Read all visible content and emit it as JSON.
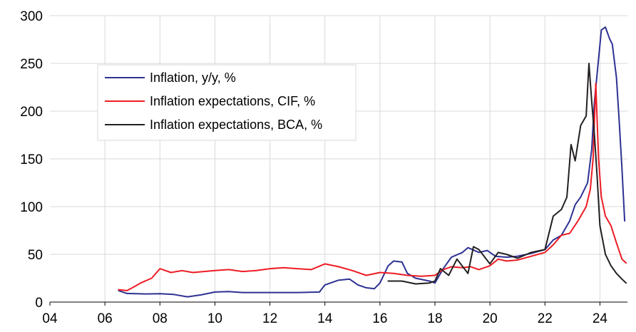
{
  "chart_data": {
    "type": "line",
    "title": "",
    "xlabel": "",
    "ylabel": "",
    "xlim": [
      2004,
      2025
    ],
    "ylim": [
      0,
      300
    ],
    "grid": true,
    "legend_position": "top-left",
    "x_ticks": [
      {
        "value": 2004,
        "label": "04"
      },
      {
        "value": 2006,
        "label": "06"
      },
      {
        "value": 2008,
        "label": "08"
      },
      {
        "value": 2010,
        "label": "10"
      },
      {
        "value": 2012,
        "label": "12"
      },
      {
        "value": 2014,
        "label": "14"
      },
      {
        "value": 2016,
        "label": "16"
      },
      {
        "value": 2018,
        "label": "18"
      },
      {
        "value": 2020,
        "label": "20"
      },
      {
        "value": 2022,
        "label": "22"
      },
      {
        "value": 2024,
        "label": "24"
      }
    ],
    "y_ticks": [
      {
        "value": 0,
        "label": "0"
      },
      {
        "value": 50,
        "label": "50"
      },
      {
        "value": 100,
        "label": "100"
      },
      {
        "value": 150,
        "label": "150"
      },
      {
        "value": 200,
        "label": "200"
      },
      {
        "value": 250,
        "label": "250"
      },
      {
        "value": 300,
        "label": "300"
      }
    ],
    "series": [
      {
        "name": "Inflation, y/y, %",
        "color": "#2e3192",
        "points": [
          [
            2006.5,
            12
          ],
          [
            2006.8,
            9
          ],
          [
            2007.5,
            8.5
          ],
          [
            2008.0,
            8.8
          ],
          [
            2008.5,
            8
          ],
          [
            2009.0,
            5.5
          ],
          [
            2009.5,
            7.5
          ],
          [
            2010.0,
            10.5
          ],
          [
            2010.5,
            11
          ],
          [
            2011.0,
            10
          ],
          [
            2012.0,
            10
          ],
          [
            2013.0,
            10
          ],
          [
            2013.8,
            10.5
          ],
          [
            2014.0,
            18
          ],
          [
            2014.5,
            23
          ],
          [
            2014.9,
            24
          ],
          [
            2015.2,
            18
          ],
          [
            2015.5,
            15
          ],
          [
            2015.8,
            14
          ],
          [
            2016.0,
            20
          ],
          [
            2016.3,
            38
          ],
          [
            2016.5,
            43
          ],
          [
            2016.8,
            42
          ],
          [
            2017.0,
            30
          ],
          [
            2017.3,
            25
          ],
          [
            2017.8,
            22
          ],
          [
            2018.0,
            20
          ],
          [
            2018.3,
            35
          ],
          [
            2018.6,
            47
          ],
          [
            2019.0,
            52
          ],
          [
            2019.2,
            57
          ],
          [
            2019.6,
            52
          ],
          [
            2019.9,
            54
          ],
          [
            2020.2,
            48
          ],
          [
            2020.6,
            47
          ],
          [
            2021.0,
            48
          ],
          [
            2021.5,
            51
          ],
          [
            2022.0,
            55
          ],
          [
            2022.3,
            65
          ],
          [
            2022.6,
            70
          ],
          [
            2022.9,
            85
          ],
          [
            2023.1,
            102
          ],
          [
            2023.3,
            110
          ],
          [
            2023.55,
            125
          ],
          [
            2023.7,
            160
          ],
          [
            2023.8,
            210
          ],
          [
            2023.9,
            240
          ],
          [
            2024.05,
            285
          ],
          [
            2024.2,
            288
          ],
          [
            2024.35,
            276
          ],
          [
            2024.45,
            270
          ],
          [
            2024.6,
            235
          ],
          [
            2024.7,
            190
          ],
          [
            2024.8,
            140
          ],
          [
            2024.9,
            85
          ]
        ]
      },
      {
        "name": "Inflation expectations, CIF, %",
        "color": "#ed1c24",
        "points": [
          [
            2006.5,
            13
          ],
          [
            2006.8,
            12
          ],
          [
            2007.0,
            15
          ],
          [
            2007.3,
            20
          ],
          [
            2007.7,
            25
          ],
          [
            2008.0,
            35
          ],
          [
            2008.4,
            31
          ],
          [
            2008.8,
            33
          ],
          [
            2009.2,
            31
          ],
          [
            2009.6,
            32
          ],
          [
            2010.0,
            33
          ],
          [
            2010.5,
            34
          ],
          [
            2011.0,
            32
          ],
          [
            2011.5,
            33
          ],
          [
            2012.0,
            35
          ],
          [
            2012.5,
            36
          ],
          [
            2013.0,
            35
          ],
          [
            2013.5,
            34
          ],
          [
            2014.0,
            40
          ],
          [
            2014.5,
            37
          ],
          [
            2015.0,
            33
          ],
          [
            2015.5,
            28
          ],
          [
            2016.0,
            31
          ],
          [
            2016.5,
            30
          ],
          [
            2017.0,
            28
          ],
          [
            2017.5,
            27
          ],
          [
            2018.0,
            28
          ],
          [
            2018.3,
            34
          ],
          [
            2018.6,
            37
          ],
          [
            2019.0,
            36
          ],
          [
            2019.3,
            37
          ],
          [
            2019.6,
            34
          ],
          [
            2020.0,
            38
          ],
          [
            2020.3,
            45
          ],
          [
            2020.6,
            43
          ],
          [
            2021.0,
            44
          ],
          [
            2021.5,
            48
          ],
          [
            2022.0,
            52
          ],
          [
            2022.3,
            60
          ],
          [
            2022.6,
            70
          ],
          [
            2022.9,
            72
          ],
          [
            2023.2,
            85
          ],
          [
            2023.5,
            100
          ],
          [
            2023.65,
            118
          ],
          [
            2023.75,
            150
          ],
          [
            2023.85,
            229
          ],
          [
            2023.95,
            150
          ],
          [
            2024.05,
            110
          ],
          [
            2024.2,
            90
          ],
          [
            2024.4,
            80
          ],
          [
            2024.6,
            62
          ],
          [
            2024.8,
            45
          ],
          [
            2024.95,
            41
          ]
        ]
      },
      {
        "name": "Inflation expectations, BCA, %",
        "color": "#231f20",
        "points": [
          [
            2016.3,
            22
          ],
          [
            2016.8,
            22
          ],
          [
            2017.3,
            19
          ],
          [
            2017.8,
            20
          ],
          [
            2018.0,
            22
          ],
          [
            2018.2,
            35
          ],
          [
            2018.5,
            28
          ],
          [
            2018.8,
            45
          ],
          [
            2019.2,
            30
          ],
          [
            2019.4,
            58
          ],
          [
            2019.6,
            55
          ],
          [
            2020.0,
            40
          ],
          [
            2020.3,
            52
          ],
          [
            2020.6,
            50
          ],
          [
            2021.0,
            46
          ],
          [
            2021.5,
            52
          ],
          [
            2022.0,
            55
          ],
          [
            2022.3,
            90
          ],
          [
            2022.6,
            97
          ],
          [
            2022.8,
            110
          ],
          [
            2022.95,
            165
          ],
          [
            2023.1,
            148
          ],
          [
            2023.3,
            185
          ],
          [
            2023.5,
            195
          ],
          [
            2023.6,
            250
          ],
          [
            2023.7,
            210
          ],
          [
            2023.8,
            175
          ],
          [
            2023.9,
            130
          ],
          [
            2024.0,
            80
          ],
          [
            2024.2,
            50
          ],
          [
            2024.4,
            38
          ],
          [
            2024.6,
            30
          ],
          [
            2024.8,
            24
          ],
          [
            2024.95,
            20
          ]
        ]
      }
    ]
  }
}
